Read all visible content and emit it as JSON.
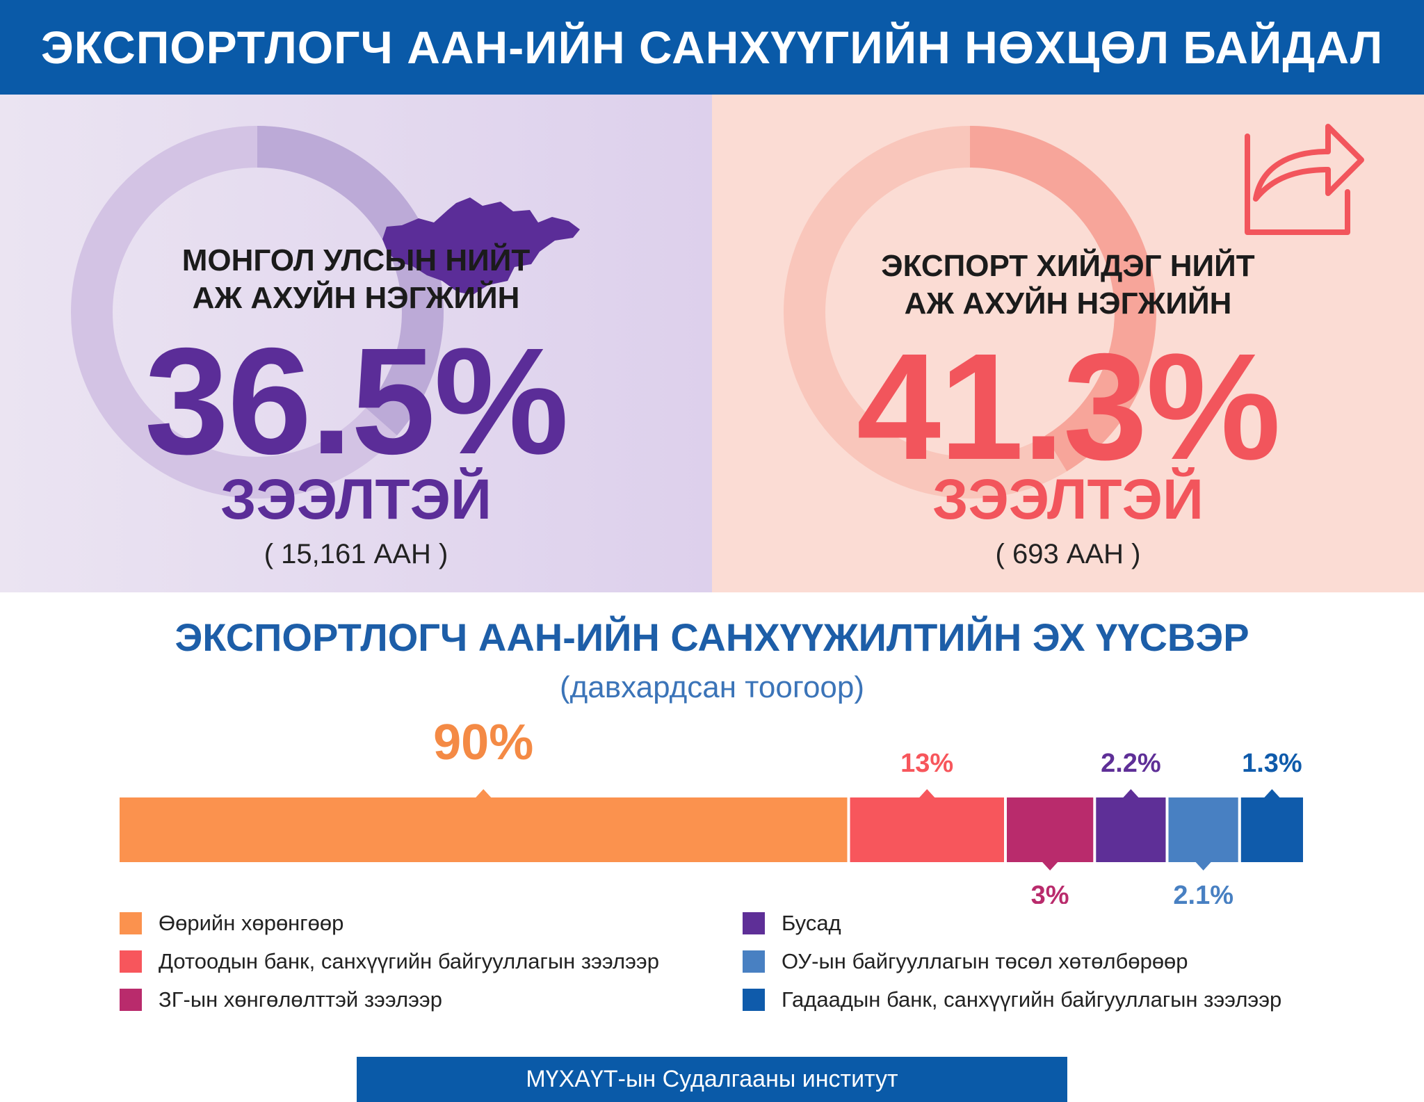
{
  "header": {
    "title": "ЭКСПОРТЛОГЧ ААН-ИЙН САНХҮҮГИЙН НӨХЦӨЛ БАЙДАЛ"
  },
  "left_panel": {
    "caption_line1": "МОНГОЛ УЛСЫН НИЙТ",
    "caption_line2": "АЖ АХУЙН НЭГЖИЙН",
    "value": "36.5%",
    "label": "ЗЭЭЛТЭЙ",
    "count": "( 15,161 ААН )",
    "share": 0.365,
    "icon": "mongolia-map-icon",
    "accent": "#5b2d98"
  },
  "right_panel": {
    "caption_line1": "ЭКСПОРТ ХИЙДЭГ НИЙТ",
    "caption_line2": "АЖ АХУЙН НЭГЖИЙН",
    "value": "41.3%",
    "label": "ЗЭЭЛТЭЙ",
    "count": "( 693 ААН )",
    "share": 0.413,
    "icon": "export-share-icon",
    "accent": "#f2555c"
  },
  "chart_title": "ЭКСПОРТЛОГЧ ААН-ИЙН САНХҮҮЖИЛТИЙН ЭХ ҮҮСВЭР",
  "chart_subtitle": "(давхардсан тоогоор)",
  "chart_data": {
    "type": "bar",
    "orientation": "horizontal-stacked",
    "title": "ЭКСПОРТЛОГЧ ААН-ИЙН САНХҮҮЖИЛТИЙН ЭХ ҮҮСВЭР",
    "subtitle": "(давхардсан тоогоор)",
    "categories": [
      "Өөрийн хөрөнгөөр",
      "Дотоодын банк, санхүүгийн байгууллагын зээлээр",
      "ЗГ-ын хөнгөлөлттэй зээлээр",
      "Бусад",
      "ОУ-ын байгууллагын төсөл хөтөлбөрөөр",
      "Гадаадын банк, санхүүгийн байгууллагын зээлээр"
    ],
    "values": [
      90,
      13,
      3,
      2.2,
      2.1,
      1.3
    ],
    "labels": [
      "90%",
      "13%",
      "3%",
      "2.2%",
      "2.1%",
      "1.3%"
    ],
    "label_positions": [
      "above",
      "above",
      "below",
      "above",
      "below",
      "above"
    ],
    "colors": [
      "#fb924e",
      "#f7565c",
      "#b92b6c",
      "#5e2f97",
      "#4880c2",
      "#0f5bab"
    ],
    "legend_position": "bottom",
    "grid": false
  },
  "legend": {
    "left": [
      {
        "label": "Өөрийн хөрөнгөөр",
        "color": "#fb924e"
      },
      {
        "label": "Дотоодын банк, санхүүгийн байгууллагын зээлээр",
        "color": "#f7565c"
      },
      {
        "label": "ЗГ-ын хөнгөлөлттэй зээлээр",
        "color": "#b92b6c"
      }
    ],
    "right": [
      {
        "label": "Бусад",
        "color": "#5e2f97"
      },
      {
        "label": "ОУ-ын байгууллагын төсөл хөтөлбөрөөр",
        "color": "#4880c2"
      },
      {
        "label": "Гадаадын банк, санхүүгийн байгууллагын зээлээр",
        "color": "#0f5bab"
      }
    ]
  },
  "footer": {
    "source": "МҮХАҮТ-ын Судалгааны институт"
  }
}
